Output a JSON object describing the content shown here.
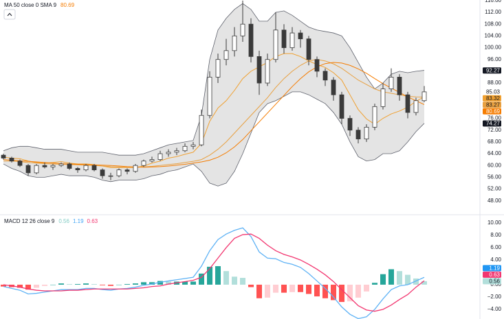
{
  "chart_data": [
    {
      "type": "candlestick",
      "legend": "MA 50 close 0 SMA 9",
      "legend_value": {
        "value": 80.69,
        "color": "#f57c00"
      },
      "ylim": [
        43.5,
        116.2
      ],
      "yticks": [
        {
          "value": 116,
          "label": "116.00"
        },
        {
          "value": 112,
          "label": "112.00"
        },
        {
          "value": 108,
          "label": "108.00"
        },
        {
          "value": 104,
          "label": "104.00"
        },
        {
          "value": 100,
          "label": "100.00"
        },
        {
          "value": 96,
          "label": "96.00"
        },
        {
          "value": 88,
          "label": "88.00"
        },
        {
          "value": 76,
          "label": "76.00"
        },
        {
          "value": 72,
          "label": "72.00"
        },
        {
          "value": 68,
          "label": "68.00"
        },
        {
          "value": 64,
          "label": "64.00"
        },
        {
          "value": 60,
          "label": "60.00"
        },
        {
          "value": 56,
          "label": "56.00"
        },
        {
          "value": 52,
          "label": "52.00"
        },
        {
          "value": 48,
          "label": "48.00"
        }
      ],
      "grid": false,
      "candle_colors": {
        "up": "#ffffff",
        "down": "#3a3a3a",
        "outline": "#3a3a3a"
      },
      "candles": {
        "open": [
          63.5,
          62.5,
          61.5,
          60,
          57.5,
          60,
          59.5,
          60,
          60.5,
          59,
          58.5,
          60,
          58.5,
          56.5,
          56.5,
          58.5,
          58,
          60,
          61.5,
          62,
          64,
          64.5,
          65,
          66.5,
          67,
          77,
          90,
          96,
          99,
          104,
          108,
          97,
          88,
          96,
          106,
          100,
          105,
          103,
          96,
          92,
          89,
          84,
          76,
          72,
          69,
          73,
          80,
          86,
          90,
          84,
          78,
          82
        ],
        "high": [
          64,
          63,
          62,
          60.5,
          60.5,
          61,
          60.5,
          61,
          61,
          59.5,
          60.5,
          60.5,
          59,
          57.5,
          59,
          59,
          60.5,
          62,
          63,
          65,
          65.5,
          66,
          67.5,
          68,
          79,
          92,
          98,
          103,
          107,
          116,
          110,
          99,
          98,
          112,
          108,
          107,
          106,
          104,
          97,
          93,
          90,
          85,
          77,
          73,
          74,
          81,
          88,
          93,
          91,
          85,
          83,
          87
        ],
        "low": [
          62,
          61,
          59.5,
          56.5,
          57,
          59,
          58.5,
          59.5,
          58.5,
          57.5,
          58,
          58,
          55.5,
          55,
          56,
          57,
          57.5,
          59.5,
          61,
          61.5,
          63,
          63.5,
          64.5,
          65.5,
          66.5,
          76,
          88,
          94,
          97,
          102,
          95,
          84,
          87,
          95,
          98,
          99,
          100,
          94,
          90,
          87,
          82,
          74,
          70,
          67.5,
          68,
          72,
          79,
          85,
          82,
          76,
          77,
          81.5
        ],
        "close": [
          62.5,
          61.5,
          60,
          57.5,
          60,
          59.5,
          60,
          60.5,
          59,
          58.5,
          60,
          58.5,
          56.5,
          56.5,
          58.5,
          58,
          60,
          61.5,
          62,
          64,
          64.5,
          65,
          66.5,
          67,
          77,
          90,
          96,
          99,
          104,
          108,
          97,
          88,
          96,
          106,
          100,
          105,
          103,
          96,
          92,
          89,
          84,
          76,
          72,
          69,
          73,
          80,
          86,
          90,
          84,
          78,
          82,
          85
        ]
      },
      "bands": {
        "fill": "#e4e4e4",
        "line_color": "#5d606b",
        "upper": [
          65,
          66,
          66.5,
          66.5,
          66,
          65.5,
          65.5,
          65.5,
          65,
          64.5,
          64.5,
          64.5,
          64.5,
          64,
          63.5,
          63.5,
          63.5,
          64,
          65,
          66,
          67,
          67.5,
          68,
          68.5,
          77,
          96,
          106,
          110,
          113,
          115,
          113,
          109,
          109,
          112,
          112.5,
          111,
          109,
          107,
          106,
          105.5,
          105,
          104,
          100,
          95,
          90,
          86,
          88,
          91,
          92,
          91.5,
          92,
          92.3
        ],
        "lower": [
          60.5,
          59,
          58,
          56.5,
          56,
          56,
          56.5,
          57,
          56.5,
          56.5,
          56.5,
          56,
          55,
          54.5,
          55,
          55,
          55,
          55.5,
          56.5,
          57,
          58,
          58.5,
          59.5,
          60.5,
          58,
          54,
          53,
          54,
          58,
          64,
          71,
          78,
          81,
          82,
          83.5,
          85,
          85,
          84,
          82.5,
          81,
          78,
          74,
          68,
          63,
          61.5,
          62,
          64,
          64,
          65,
          68,
          71.5,
          74.3
        ]
      },
      "lines": [
        {
          "color": "#f0a030",
          "values": [
            62.8,
            62.5,
            62.3,
            61.5,
            61,
            60.8,
            61,
            61.3,
            60.8,
            60.5,
            60.5,
            60.3,
            59.8,
            59.3,
            59.3,
            59.3,
            59.3,
            59.8,
            60.8,
            61.5,
            62.5,
            63,
            63.8,
            64.5,
            67.5,
            75,
            79.5,
            82,
            85.5,
            89.5,
            92,
            93.5,
            95,
            97,
            98,
            98,
            97,
            95.5,
            94.3,
            93.3,
            91.5,
            89,
            84,
            79,
            75.8,
            74,
            76,
            77.5,
            78.5,
            79.8,
            81.8,
            83.32
          ]
        },
        {
          "color": "#e8a040",
          "values": [
            61.5,
            61.5,
            61.3,
            61,
            60.8,
            60.6,
            60.5,
            60.4,
            60.3,
            60.2,
            60.1,
            60,
            59.8,
            59.6,
            59.5,
            59.4,
            59.4,
            59.5,
            59.7,
            60,
            60.3,
            60.6,
            61,
            61.4,
            62,
            63.5,
            65.5,
            68,
            71,
            74,
            77,
            80,
            83,
            86.5,
            89.5,
            92,
            94,
            95.5,
            96,
            95.5,
            94.5,
            93,
            91,
            89,
            87.5,
            86,
            85,
            84.5,
            84,
            83.5,
            83.3,
            83.27
          ]
        },
        {
          "color": "#f57c00",
          "values": [
            62,
            61.8,
            61.6,
            61.4,
            61.2,
            61,
            60.8,
            60.6,
            60.5,
            60.4,
            60.3,
            60.2,
            60.1,
            60,
            59.8,
            59.6,
            59.5,
            59.4,
            59.5,
            59.6,
            59.8,
            60.1,
            60.4,
            60.8,
            61.2,
            61.8,
            62.8,
            64.3,
            66.3,
            68.8,
            71.8,
            74.8,
            77.8,
            80.8,
            83.8,
            86.8,
            89.5,
            91.8,
            93.5,
            94.6,
            95,
            94.8,
            94,
            92.8,
            91.3,
            89.5,
            87.8,
            86.3,
            84.8,
            83.3,
            82,
            80.69
          ]
        }
      ],
      "price_labels": [
        {
          "value": 92.27,
          "color": "#131722",
          "text_color": "#ffffff"
        },
        {
          "value": 85.03,
          "color": "#ffffff",
          "text_color": "#131722"
        },
        {
          "value": 83.32,
          "color": "#f0a030",
          "text_color": "#131722"
        },
        {
          "value": 83.27,
          "color": "#e8a040",
          "text_color": "#131722"
        },
        {
          "value": 80.69,
          "color": "#f57c00",
          "text_color": "#ffffff"
        },
        {
          "value": 74.27,
          "color": "#131722",
          "text_color": "#ffffff"
        }
      ]
    },
    {
      "type": "macd",
      "legend": "MACD 12 26 close 9",
      "legend_values": [
        {
          "value": 0.56,
          "color": "#80cbc4"
        },
        {
          "value": 1.19,
          "color": "#42a5f5"
        },
        {
          "value": 0.63,
          "color": "#f23670"
        }
      ],
      "ylim": [
        -5.56,
        11.33
      ],
      "yticks": [
        {
          "value": 10,
          "label": "10.00"
        },
        {
          "value": 8,
          "label": "8.00"
        },
        {
          "value": 6,
          "label": "6.00"
        },
        {
          "value": 4,
          "label": "4.00"
        },
        {
          "value": 0,
          "label": "0.00"
        },
        {
          "value": -2,
          "label": "−2.00"
        },
        {
          "value": -4,
          "label": "−4.00"
        }
      ],
      "histogram_colors": {
        "up_rising": "#26a69a",
        "up_falling": "#b2dfdb",
        "down_rising": "#ffcdd2",
        "down_falling": "#ff5252"
      },
      "histogram": [
        -0.3,
        -0.4,
        -0.5,
        -0.8,
        -0.5,
        -0.2,
        0,
        0.2,
        0.1,
        0.1,
        0.2,
        0.1,
        -0.1,
        -0.2,
        0,
        0.1,
        0.2,
        0.4,
        0.4,
        0.6,
        0.5,
        0.5,
        0.5,
        0.5,
        1.8,
        2.9,
        3,
        2.2,
        1.3,
        1.1,
        -0.4,
        -2.2,
        -2.1,
        -1.3,
        -1.3,
        -1.2,
        -1.2,
        -1.5,
        -1.9,
        -2.2,
        -2.5,
        -2.8,
        -2.7,
        -2.1,
        -1.1,
        0.3,
        1.7,
        2.5,
        2.2,
        1.6,
        1,
        0.56
      ],
      "lines": [
        {
          "color": "#5eb2f5",
          "values": [
            -0.3,
            -0.6,
            -0.9,
            -1.5,
            -1.4,
            -1.2,
            -1,
            -0.8,
            -0.8,
            -0.8,
            -0.6,
            -0.6,
            -0.8,
            -0.9,
            -0.7,
            -0.6,
            -0.4,
            -0.1,
            0.1,
            0.4,
            0.6,
            0.8,
            1,
            1.2,
            3,
            5.5,
            7.3,
            8.2,
            8.8,
            9.2,
            7.8,
            5.3,
            4.3,
            4.2,
            3.6,
            3.3,
            2.8,
            1.8,
            0.6,
            -0.6,
            -2,
            -3.6,
            -4.8,
            -5.5,
            -5.2,
            -4,
            -2.3,
            -0.8,
            -0.2,
            0,
            0.6,
            1.19
          ]
        },
        {
          "color": "#f23670",
          "values": [
            0,
            -0.2,
            -0.4,
            -0.7,
            -0.9,
            -1,
            -1,
            -1,
            -0.9,
            -0.9,
            -0.8,
            -0.7,
            -0.7,
            -0.7,
            -0.7,
            -0.7,
            -0.6,
            -0.5,
            -0.3,
            -0.2,
            0.1,
            0.3,
            0.5,
            0.7,
            1.2,
            2.6,
            4.3,
            6,
            7.5,
            8.1,
            8.2,
            7.5,
            6.4,
            5.5,
            4.9,
            4.5,
            4,
            3.3,
            2.5,
            1.6,
            0.5,
            -0.8,
            -2.1,
            -3.4,
            -4.1,
            -4.3,
            -4,
            -3.3,
            -2.4,
            -1.6,
            -0.4,
            0.63
          ]
        }
      ],
      "price_labels": [
        {
          "value": 1.19,
          "color": "#2196f3",
          "text_color": "#ffffff"
        },
        {
          "value": 0.63,
          "color": "#f23670",
          "text_color": "#ffffff"
        },
        {
          "value": 0.56,
          "color": "#b2dfdb",
          "text_color": "#131722"
        }
      ]
    }
  ]
}
